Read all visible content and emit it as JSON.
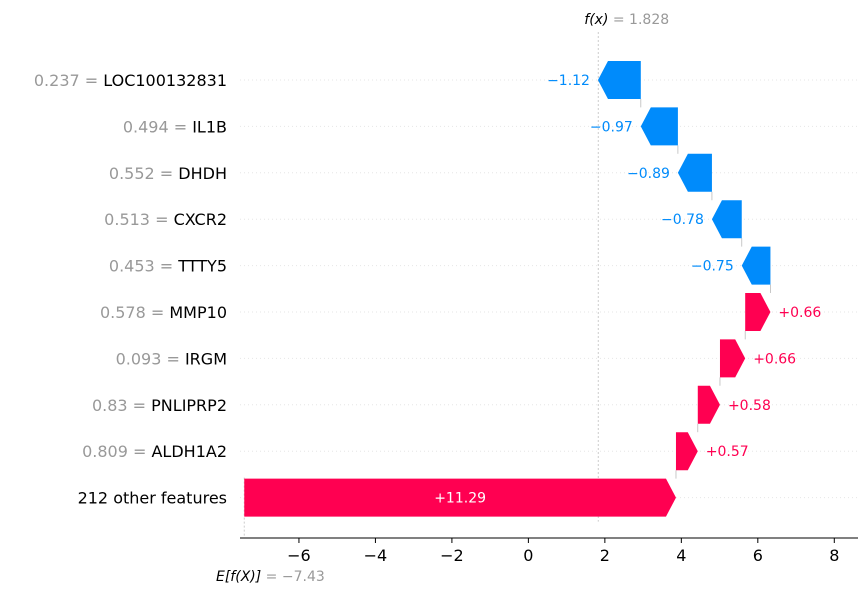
{
  "chart_data": {
    "type": "waterfall",
    "fx": {
      "prefix": "f(x)",
      "value_text": "= 1.828",
      "value": 1.828
    },
    "efx": {
      "prefix": "E[f(X)]",
      "value_text": "= −7.43",
      "value": -7.43
    },
    "x_ticks": [
      {
        "value": -6,
        "label": "−6"
      },
      {
        "value": -4,
        "label": "−4"
      },
      {
        "value": -2,
        "label": "−2"
      },
      {
        "value": 0,
        "label": "0"
      },
      {
        "value": 2,
        "label": "2"
      },
      {
        "value": 4,
        "label": "4"
      },
      {
        "value": 6,
        "label": "6"
      },
      {
        "value": 8,
        "label": "8"
      }
    ],
    "xlim": [
      -7.62,
      8.62
    ],
    "features": [
      {
        "feature_value": "0.237 =",
        "name": "LOC100132831",
        "contribution": -1.12,
        "label": "−1.12"
      },
      {
        "feature_value": "0.494 =",
        "name": "IL1B",
        "contribution": -0.97,
        "label": "−0.97"
      },
      {
        "feature_value": "0.552 =",
        "name": "DHDH",
        "contribution": -0.89,
        "label": "−0.89"
      },
      {
        "feature_value": "0.513 =",
        "name": "CXCR2",
        "contribution": -0.78,
        "label": "−0.78"
      },
      {
        "feature_value": "0.453 =",
        "name": "TTTY5",
        "contribution": -0.75,
        "label": "−0.75"
      },
      {
        "feature_value": "0.578 =",
        "name": "MMP10",
        "contribution": 0.66,
        "label": "+0.66"
      },
      {
        "feature_value": "0.093 =",
        "name": "IRGM",
        "contribution": 0.66,
        "label": "+0.66"
      },
      {
        "feature_value": "0.83 =",
        "name": "PNLIPRP2",
        "contribution": 0.58,
        "label": "+0.58"
      },
      {
        "feature_value": "0.809 =",
        "name": "ALDH1A2",
        "contribution": 0.57,
        "label": "+0.57"
      },
      {
        "feature_value": "",
        "name": "212 other features",
        "contribution": 11.29,
        "label": "+11.29"
      }
    ],
    "colors": {
      "positive": "#ff0051",
      "negative": "#008bfb",
      "muted": "#999999",
      "grid": "#cccccc"
    }
  }
}
